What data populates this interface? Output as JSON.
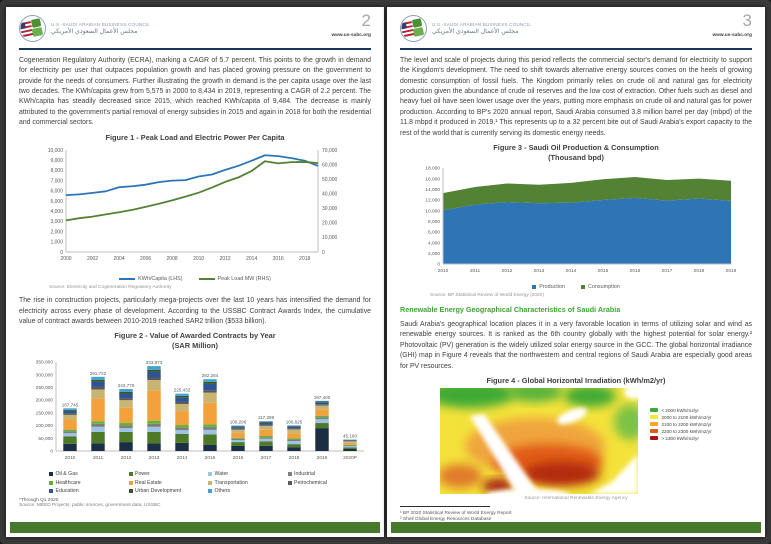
{
  "pages": {
    "left": {
      "page_number": "2",
      "site": "www.us-sabc.org",
      "org_name_en": "U.S.-SAUDI ARABIAN BUSINESS COUNCIL",
      "org_name_ar": "مجلس الأعمال السعودي الأمريكي",
      "paragraph1": "Cogeneration Regulatory Authority (ECRA), marking a CAGR of 5.7 percent. This points to the growth in demand for electricity per user that outpaces population growth and has placed growing pressure on the government to provide for the needs of consumers. Further illustrating the growth in demand is the per capita usage over the last two decades. The KWh/capita grew from 5,575 in 2000 to 8,434 in 2019, representing a CAGR of 2.2 percent. The KWh/capita has steadily decreased since 2015, which reached KWh/capita of 9,484. The decrease is mainly attributed to the government's partial removal of energy subsidies in 2015 and again in 2018 for both the residential and commercial sectors.",
      "paragraph2": "The rise in construction projects, particularly mega-projects over the last 10 years has intensified the demand for electricity across every phase of development. According to the USSBC Contract Awards Index, the cumulative value of contract awards between 2010-2019 reached SAR2 trillion ($533 billion)."
    },
    "right": {
      "page_number": "3",
      "site": "www.us-sabc.org",
      "org_name_en": "U.S.-SAUDI ARABIAN BUSINESS COUNCIL",
      "org_name_ar": "مجلس الأعمال السعودي الأمريكي",
      "paragraph1": "The level and scale of projects during this period reflects the commercial sector's demand for electricity to support the Kingdom's development. The need to shift towards alternative energy sources comes on the heels of growing domestic consumption of fossil fuels. The Kingdom primarily relies on crude oil and natural gas for electricity production given the abundance of crude oil reserves and the low cost of extraction. Other fuels such as diesel and heavy fuel oil have seen lower usage over the years, putting more emphasis on crude oil and natural gas for power production. According to BP's 2020 annual report, Saudi Arabia consumed 3.8 million barrel per day (mbpd) of the 11.8 mbpd it produced in 2019.¹ This represents up to a 32 percent bite out of Saudi Arabia's export capacity to the rest of the world that is currently serving its domestic energy needs.",
      "section_heading": "Renewable Energy Geographical Characteristics of Saudi Arabia",
      "paragraph2": "Saudi Arabia's geographical location places it in a very favorable location in terms of utilizing solar and wind as renewable energy sources. It is ranked as the 6th country globally with the highest potential for solar energy.² Photovoltaic (PV) generation is the widely utilized solar energy source in the GCC. The global horizontal irradiance (GHI) map in Figure 4 reveals that the northwestern and central regions of Saudi Arabia are especially good areas for PV resources.",
      "footnote1": "¹ BP 2020 Statistical Review of World Energy Report",
      "footnote2": "² Shell Global Energy Resources Database"
    }
  },
  "chart_data": [
    {
      "type": "line",
      "title": "Figure 1 - Peak Load and Electric Power Per Capita",
      "x": [
        2000,
        2001,
        2002,
        2003,
        2004,
        2005,
        2006,
        2007,
        2008,
        2009,
        2010,
        2011,
        2012,
        2013,
        2014,
        2015,
        2016,
        2017,
        2018,
        2019
      ],
      "xticks": [
        2000,
        2002,
        2004,
        2006,
        2008,
        2010,
        2012,
        2014,
        2016,
        2018
      ],
      "series": [
        {
          "name": "KWh/Capita (LHS)",
          "color": "#2e75b6",
          "axis": "left",
          "values": [
            5575,
            5650,
            5800,
            5950,
            6350,
            6450,
            6600,
            6850,
            7000,
            7050,
            7400,
            7600,
            8050,
            8450,
            8950,
            9484,
            9400,
            9200,
            8950,
            8434
          ]
        },
        {
          "name": "Peak Load MW (RHS)",
          "color": "#548235",
          "axis": "right",
          "values": [
            21700,
            23200,
            24300,
            25800,
            27300,
            28900,
            31000,
            33100,
            35400,
            38000,
            40700,
            44200,
            48100,
            51200,
            55600,
            62300,
            60800,
            61700,
            61800,
            61000
          ]
        }
      ],
      "ylim_left": [
        0,
        10000
      ],
      "ytick_left": 1000,
      "ylim_right": [
        0,
        70000
      ],
      "ytick_right": 10000,
      "grid": false,
      "legend_position": "bottom",
      "source": "Source: Electricity and Cogeneration Regulatory Authority"
    },
    {
      "type": "bar",
      "stacked": true,
      "title": "Figure 2 - Value of Awarded Contracts by Year",
      "subtitle": "(SAR Million)",
      "categories": [
        "2010",
        "2011",
        "2012",
        "2013",
        "2014",
        "2015",
        "2016",
        "2017",
        "2018",
        "2019",
        "2020P"
      ],
      "totals": [
        167745,
        291722,
        243770,
        333873,
        225432,
        282284,
        100296,
        117299,
        100825,
        197400,
        45190
      ],
      "ylim": [
        0,
        350000
      ],
      "ytick": 50000,
      "series": [
        {
          "name": "Oil & Gas",
          "color": "#1a2e44",
          "values": [
            28000,
            30000,
            35000,
            30000,
            32000,
            25000,
            20000,
            20000,
            15000,
            90000,
            8000
          ]
        },
        {
          "name": "Power",
          "color": "#4e7a28",
          "values": [
            30000,
            45000,
            40000,
            45000,
            35000,
            40000,
            15000,
            18000,
            12000,
            20000,
            6000
          ]
        },
        {
          "name": "Water",
          "color": "#9dc3e6",
          "values": [
            12000,
            20000,
            15000,
            20000,
            15000,
            18000,
            8000,
            10000,
            12000,
            15000,
            5000
          ]
        },
        {
          "name": "Industrial",
          "color": "#7f7f7f",
          "values": [
            8000,
            12000,
            10000,
            12000,
            10000,
            12000,
            5000,
            6000,
            6000,
            8000,
            3000
          ]
        },
        {
          "name": "Healthcare",
          "color": "#66b032",
          "values": [
            6000,
            10000,
            10000,
            12000,
            10000,
            10000,
            4000,
            5000,
            5000,
            6000,
            2000
          ]
        },
        {
          "name": "Real Estate",
          "color": "#f2a13c",
          "values": [
            40000,
            90000,
            60000,
            120000,
            55000,
            85000,
            20000,
            25000,
            20000,
            25000,
            8000
          ]
        },
        {
          "name": "Transportation",
          "color": "#c8b573",
          "values": [
            18000,
            35000,
            30000,
            40000,
            28000,
            40000,
            12000,
            15000,
            15000,
            15000,
            6000
          ]
        },
        {
          "name": "Petrochemical",
          "color": "#595959",
          "values": [
            6000,
            10000,
            8000,
            10000,
            8000,
            9000,
            4000,
            5000,
            5000,
            5000,
            2000
          ]
        },
        {
          "name": "Education",
          "color": "#2f5496",
          "values": [
            10000,
            20000,
            18000,
            22000,
            18000,
            25000,
            6000,
            7000,
            6000,
            8000,
            3000
          ]
        },
        {
          "name": "Urban Development",
          "color": "#375623",
          "values": [
            4000,
            8000,
            7000,
            8000,
            6000,
            8000,
            3000,
            3000,
            2000,
            3000,
            1000
          ]
        },
        {
          "name": "Others",
          "color": "#41a3d1",
          "values": [
            5745,
            11722,
            10770,
            14873,
            8432,
            10284,
            3296,
            3299,
            2825,
            2400,
            1190
          ]
        }
      ],
      "legend_items": [
        {
          "label": "Oil & Gas",
          "color": "#1a2e44"
        },
        {
          "label": "Healthcare",
          "color": "#66b032"
        },
        {
          "label": "Education",
          "color": "#2f5496"
        },
        {
          "label": "Power",
          "color": "#4e7a28"
        },
        {
          "label": "Real Estate",
          "color": "#f2a13c"
        },
        {
          "label": "Urban Development",
          "color": "#375623"
        },
        {
          "label": "Water",
          "color": "#9dc3e6"
        },
        {
          "label": "Transportation",
          "color": "#c8b573"
        },
        {
          "label": "Others",
          "color": "#41a3d1"
        },
        {
          "label": "Industrial",
          "color": "#7f7f7f"
        },
        {
          "label": "Petrochemical",
          "color": "#595959"
        }
      ],
      "footnote": "*Through Q1 2020",
      "source": "Source: MEED Projects, public sources, government data, USSBC"
    },
    {
      "type": "area",
      "stacked": true,
      "title": "Figure 3 - Saudi Oil Production & Consumption",
      "subtitle": "(Thousand bpd)",
      "x": [
        2010,
        2011,
        2012,
        2013,
        2014,
        2015,
        2016,
        2017,
        2018,
        2019
      ],
      "ylim": [
        0,
        18000
      ],
      "ytick": 2000,
      "series": [
        {
          "name": "Production",
          "color": "#2e75b6",
          "values": [
            10075,
            11144,
            11635,
            11393,
            11505,
            11998,
            12406,
            11892,
            12287,
            11832
          ]
        },
        {
          "name": "Consumption",
          "color": "#548235",
          "values": [
            3208,
            3296,
            3460,
            3472,
            3715,
            3892,
            3906,
            3854,
            3724,
            3788
          ]
        }
      ],
      "source": "Source: BP Statistical Review of World Energy (2020)"
    },
    {
      "type": "heatmap",
      "title": "Figure 4 - Global Horizontal Irradiation (kWh/m2/yr)",
      "legend": [
        {
          "label": "< 2000 kWh/m2/yr",
          "color": "#3faa35"
        },
        {
          "label": "2000 to 2100 kWh/m2/yr",
          "color": "#f7e733"
        },
        {
          "label": "2100 to 2200 kWh/m2/yr",
          "color": "#f5a623"
        },
        {
          "label": "2200 to 2300 kWh/m2/yr",
          "color": "#e05c12"
        },
        {
          "label": "> 2300 kWh/m2/yr",
          "color": "#a31515"
        }
      ],
      "source": "Source: International Renewable Energy Agency"
    }
  ],
  "colors": {
    "header_rule": "#17365d",
    "footer_bar": "#46792c",
    "section_heading": "#3fa435"
  }
}
